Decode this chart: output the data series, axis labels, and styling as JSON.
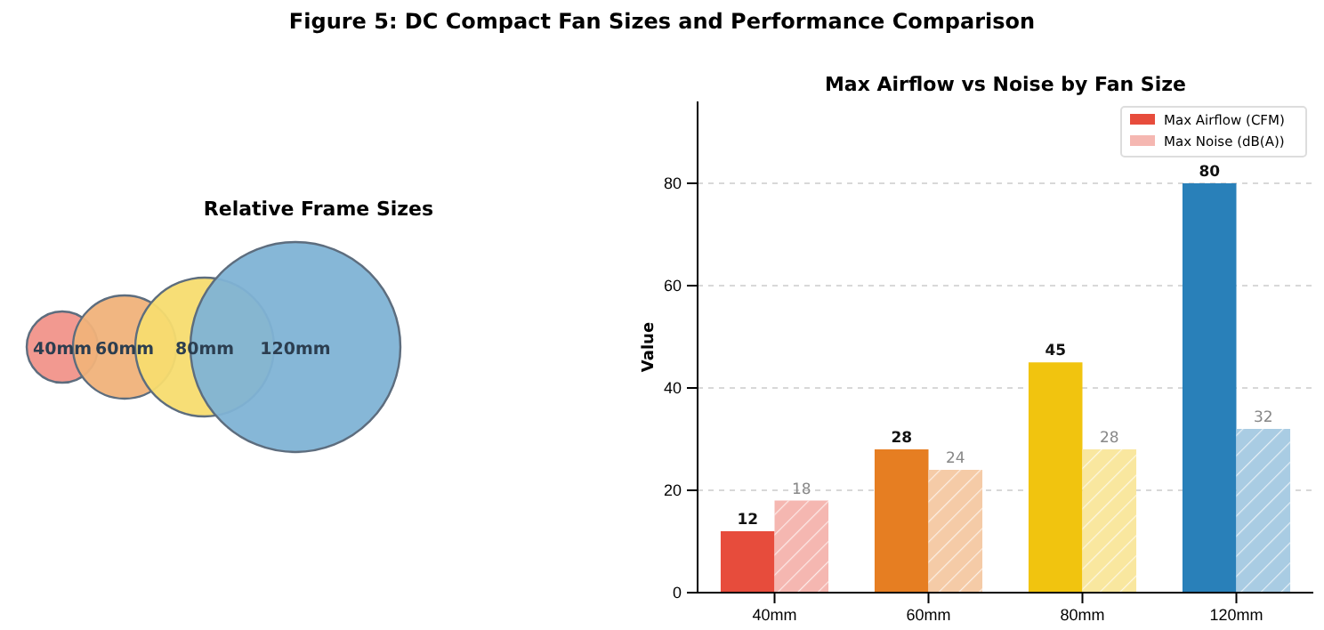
{
  "chart_data": [
    {
      "type": "other",
      "title": "Relative Frame Sizes",
      "annotations": [
        "Figure 5: DC Compact Fan Sizes and Performance Comparison"
      ],
      "categories": [
        "40mm",
        "60mm",
        "80mm",
        "120mm"
      ],
      "colors": [
        "#f1948a",
        "#f0b27a",
        "#f7dc6f",
        "#7fb3d5"
      ]
    },
    {
      "type": "bar",
      "title": "Max Airflow vs Noise by Fan Size",
      "ylabel": "Value",
      "categories": [
        "40mm",
        "60mm",
        "80mm",
        "120mm"
      ],
      "series": [
        {
          "name": "Max Airflow (CFM)",
          "values": [
            12,
            28,
            45,
            80
          ],
          "colors": [
            "#e74c3c",
            "#e67e22",
            "#f1c40f",
            "#2980b9"
          ]
        },
        {
          "name": "Max Noise (dB(A))",
          "values": [
            18,
            24,
            28,
            32
          ],
          "colors": [
            "#f5b7b1",
            "#f5cba7",
            "#f9e79f",
            "#a9cce3"
          ]
        }
      ],
      "ylim": [
        0,
        96
      ],
      "yticks": [
        0,
        20,
        40,
        60,
        80
      ],
      "grid": "y",
      "legend": "top right",
      "data_labels": true
    }
  ]
}
